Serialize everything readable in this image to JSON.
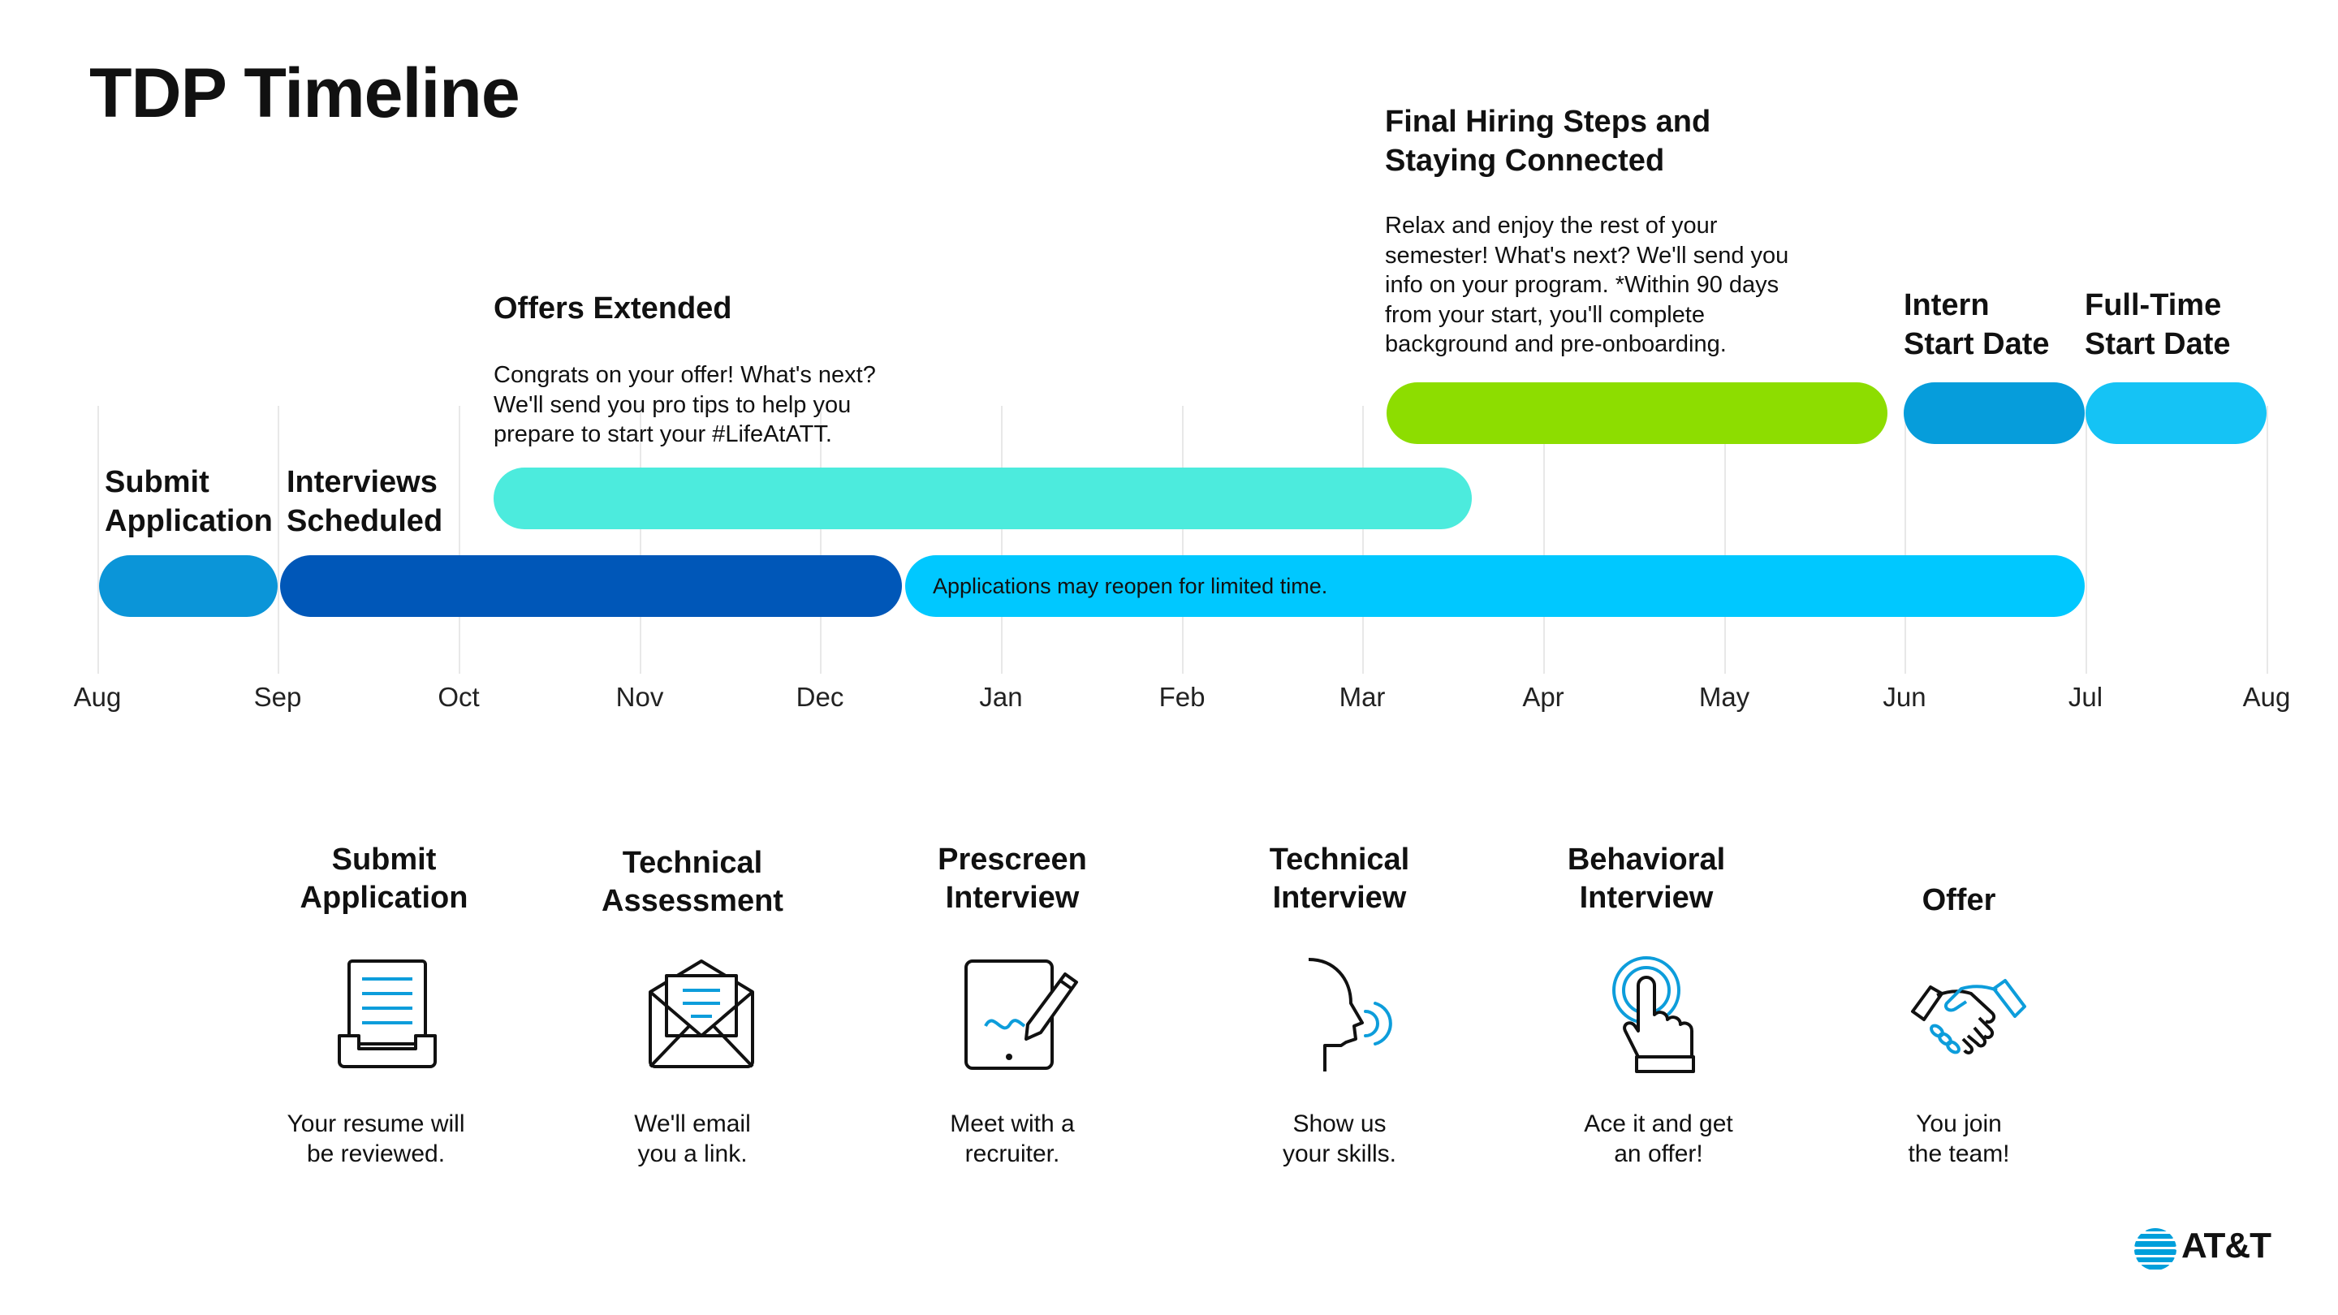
{
  "title": "TDP Timeline",
  "timeline": {
    "months": [
      "Aug",
      "Sep",
      "Oct",
      "Nov",
      "Dec",
      "Jan",
      "Feb",
      "Mar",
      "Apr",
      "May",
      "Jun",
      "Jul",
      "Aug"
    ],
    "phases": {
      "submit": {
        "heading": "Submit\nApplication",
        "color": "#0b95d8"
      },
      "interviews": {
        "heading": "Interviews\nScheduled",
        "color": "#0057b8"
      },
      "reopen": {
        "text": "Applications may reopen for limited time.",
        "color": "#00c8ff"
      },
      "offers": {
        "heading": "Offers Extended",
        "text": "Congrats on your offer! What's next?\nWe'll send you pro tips to help you\nprepare to start your #LifeAtATT.",
        "color": "#4cebdd"
      },
      "final": {
        "heading": "Final Hiring Steps and\nStaying Connected",
        "text": "Relax and enjoy the rest of your\nsemester! What's next? We'll send you\ninfo on your program. *Within 90 days\nfrom your start, you'll complete\nbackground and pre-onboarding.",
        "color": "#8ddd00"
      },
      "intern": {
        "heading": "Intern\nStart Date",
        "color": "#069ddb"
      },
      "fulltime": {
        "heading": "Full-Time\nStart Date",
        "color": "#15c3f5"
      }
    }
  },
  "steps": [
    {
      "title": "Submit\nApplication",
      "description": "Your resume will\nbe reviewed.",
      "icon": "resume-tray-icon"
    },
    {
      "title": "Technical\nAssessment",
      "description": "We'll email\nyou a link.",
      "icon": "envelope-letter-icon"
    },
    {
      "title": "Prescreen\nInterview",
      "description": "Meet with a\nrecruiter.",
      "icon": "tablet-pen-icon"
    },
    {
      "title": "Technical\nInterview",
      "description": "Show us\nyour skills.",
      "icon": "speaking-head-icon"
    },
    {
      "title": "Behavioral\nInterview",
      "description": "Ace it and get\nan offer!",
      "icon": "tap-hand-icon"
    },
    {
      "title": "Offer",
      "description": "You join\nthe team!",
      "icon": "handshake-icon"
    }
  ],
  "brand": {
    "name": "AT&T",
    "logo_icon": "att-globe-icon",
    "accent": "#009fdb"
  }
}
